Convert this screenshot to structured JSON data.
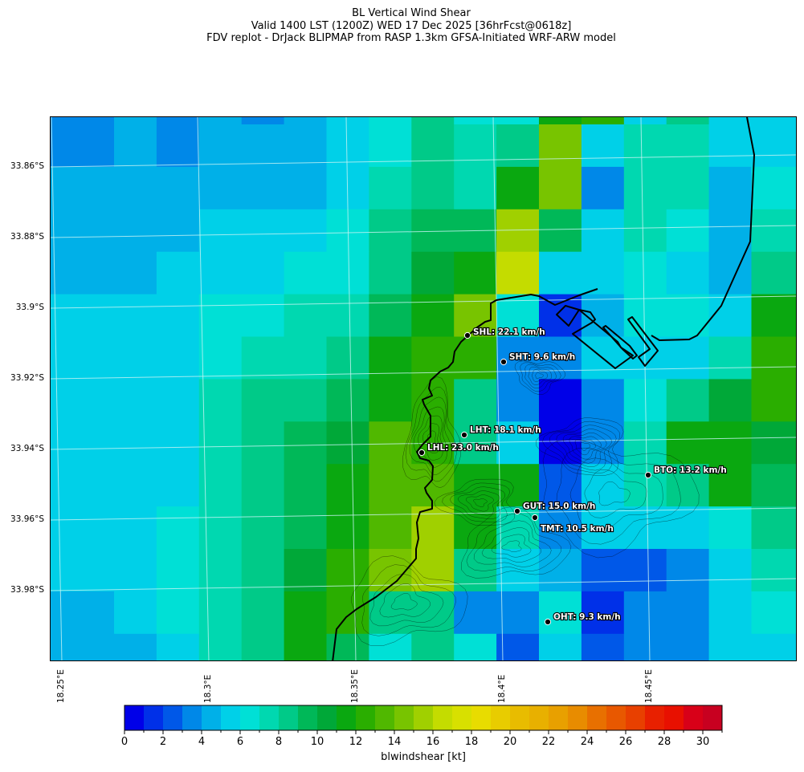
{
  "title": {
    "line1": "BL Vertical Wind Shear",
    "line2": "Valid 1400 LST (1200Z) WED 17 Dec 2025 [36hrFcst@0618z]",
    "line3": "FDV replot - DrJack BLIPMAP from RASP 1.3km GFSA-Initiated WRF-ARW model"
  },
  "axes": {
    "lat_labels": [
      "33.86°S",
      "33.88°S",
      "33.9°S",
      "33.92°S",
      "33.94°S",
      "33.96°S",
      "33.98°S"
    ],
    "lon_labels": [
      "18.25°E",
      "18.3°E",
      "18.35°E",
      "18.4°E",
      "18.45°E"
    ]
  },
  "colorbar": {
    "label": "blwindshear [kt]",
    "range": [
      0,
      31
    ],
    "tick_labels": [
      "0",
      "2",
      "4",
      "6",
      "8",
      "10",
      "12",
      "14",
      "16",
      "18",
      "20",
      "22",
      "24",
      "26",
      "28",
      "30"
    ],
    "colors": [
      "#0000e8",
      "#0030e8",
      "#0058e8",
      "#0088e8",
      "#00b0e8",
      "#00d0e8",
      "#00e0d6",
      "#00d8b0",
      "#00ca88",
      "#00b858",
      "#00a838",
      "#0aa810",
      "#2aae00",
      "#50b800",
      "#78c400",
      "#a0d000",
      "#c4dc00",
      "#d8e000",
      "#e8dc00",
      "#e8cc00",
      "#e8bc00",
      "#e8b000",
      "#e8a000",
      "#e88c00",
      "#e87000",
      "#e85800",
      "#e84000",
      "#e82000",
      "#e81000",
      "#d80018",
      "#c80020"
    ]
  },
  "field_kt_bins": [
    [
      3,
      3,
      4,
      3,
      4,
      3,
      4,
      5,
      6,
      8,
      6,
      6,
      11,
      12,
      5,
      8,
      5,
      5
    ],
    [
      3,
      3,
      4,
      3,
      4,
      4,
      4,
      5,
      6,
      8,
      7,
      8,
      14,
      5,
      7,
      7,
      5,
      5
    ],
    [
      4,
      4,
      4,
      4,
      4,
      4,
      4,
      5,
      7,
      8,
      7,
      11,
      14,
      3,
      7,
      7,
      4,
      6
    ],
    [
      4,
      4,
      4,
      4,
      5,
      5,
      5,
      6,
      8,
      9,
      9,
      15,
      9,
      5,
      7,
      6,
      4,
      7
    ],
    [
      4,
      4,
      4,
      5,
      5,
      5,
      6,
      6,
      8,
      10,
      11,
      16,
      5,
      5,
      6,
      5,
      4,
      8
    ],
    [
      5,
      5,
      5,
      5,
      6,
      6,
      7,
      7,
      9,
      11,
      14,
      6,
      1,
      4,
      6,
      6,
      5,
      11
    ],
    [
      5,
      5,
      5,
      5,
      6,
      7,
      7,
      8,
      11,
      12,
      12,
      3,
      3,
      5,
      5,
      5,
      7,
      12
    ],
    [
      5,
      5,
      5,
      5,
      7,
      8,
      8,
      9,
      11,
      12,
      8,
      3,
      0,
      3,
      6,
      8,
      10,
      12
    ],
    [
      5,
      5,
      5,
      5,
      7,
      8,
      9,
      10,
      13,
      12,
      8,
      5,
      0,
      3,
      7,
      11,
      11,
      10
    ],
    [
      5,
      5,
      5,
      5,
      7,
      8,
      9,
      11,
      13,
      13,
      11,
      11,
      2,
      5,
      7,
      8,
      11,
      9
    ],
    [
      5,
      5,
      5,
      6,
      7,
      8,
      9,
      11,
      13,
      15,
      11,
      7,
      3,
      5,
      5,
      5,
      6,
      8
    ],
    [
      5,
      5,
      5,
      6,
      7,
      8,
      10,
      12,
      14,
      15,
      8,
      5,
      4,
      2,
      2,
      3,
      5,
      7
    ],
    [
      4,
      4,
      5,
      6,
      7,
      8,
      11,
      12,
      8,
      8,
      3,
      3,
      6,
      1,
      3,
      3,
      5,
      6
    ],
    [
      4,
      4,
      4,
      5,
      7,
      8,
      11,
      9,
      6,
      8,
      6,
      2,
      5,
      2,
      3,
      3,
      5,
      5
    ]
  ],
  "stations": [
    {
      "label": "SHL: 22.1 km/h"
    },
    {
      "label": "SHT: 9.6 km/h"
    },
    {
      "label": "LHT: 18.1 km/h"
    },
    {
      "label": "LHL: 23.0 km/h"
    },
    {
      "label": "BTO: 13.2 km/h"
    },
    {
      "label": "GUT: 15.0 km/h"
    },
    {
      "label": "TMT: 10.5 km/h"
    },
    {
      "label": "OHT: 9.3 km/h"
    }
  ]
}
